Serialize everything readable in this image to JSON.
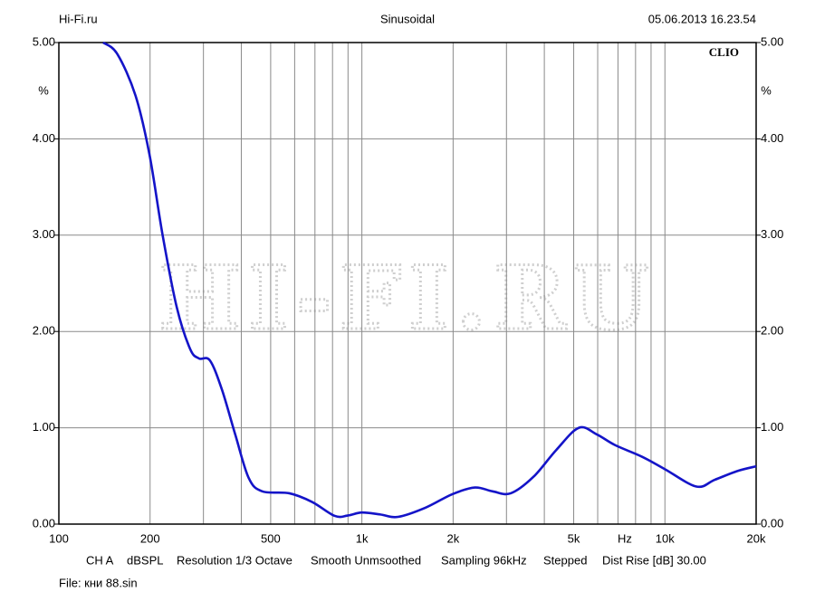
{
  "chart_data": {
    "type": "line",
    "header_left": "Hi-Fi.ru",
    "title": "Sinusoidal",
    "header_right": "05.06.2013 16.23.54",
    "brand": "CLIO",
    "watermark": "HI-FI.RU",
    "y_unit": "%",
    "x_label": "Hz",
    "x_scale": "log",
    "xlim": [
      100,
      20000
    ],
    "ylim": [
      0,
      5
    ],
    "xticks": [
      100,
      200,
      500,
      {
        "value": 1000,
        "label": "1k"
      },
      {
        "value": 2000,
        "label": "2k"
      },
      {
        "value": 5000,
        "label": "5k"
      },
      {
        "value": 10000,
        "label": "10k"
      },
      {
        "value": 20000,
        "label": "20k"
      }
    ],
    "x_minor_grid": [
      300,
      400,
      600,
      700,
      800,
      900,
      3000,
      4000,
      6000,
      7000,
      8000,
      9000
    ],
    "yticks": [
      {
        "value": 0,
        "label": "0.00"
      },
      {
        "value": 1,
        "label": "1.00"
      },
      {
        "value": 2,
        "label": "2.00"
      },
      {
        "value": 3,
        "label": "3.00"
      },
      {
        "value": 4,
        "label": "4.00"
      },
      {
        "value": 5,
        "label": "5.00"
      }
    ],
    "grid": true,
    "color": "#1414c8",
    "x": [
      140,
      156,
      179,
      199,
      220,
      245,
      271,
      290,
      315,
      345,
      382,
      423,
      469,
      576,
      685,
      814,
      901,
      1000,
      1150,
      1316,
      1620,
      1985,
      2360,
      2700,
      3100,
      3680,
      4380,
      5200,
      5970,
      6850,
      8400,
      10000,
      12700,
      14600,
      17300,
      20000
    ],
    "values": [
      5.0,
      4.88,
      4.45,
      3.84,
      3.0,
      2.25,
      1.82,
      1.72,
      1.7,
      1.4,
      0.93,
      0.48,
      0.34,
      0.32,
      0.23,
      0.085,
      0.09,
      0.12,
      0.1,
      0.075,
      0.17,
      0.31,
      0.38,
      0.34,
      0.32,
      0.49,
      0.77,
      1.0,
      0.93,
      0.82,
      0.7,
      0.57,
      0.39,
      0.46,
      0.55,
      0.6
    ],
    "footer": [
      "CH A",
      "dBSPL",
      "Resolution 1/3 Octave",
      "Smooth Unmsoothed",
      "Sampling 96kHz",
      "Stepped",
      "Dist Rise [dB] 30.00"
    ],
    "file": "File: кни 88.sin"
  }
}
